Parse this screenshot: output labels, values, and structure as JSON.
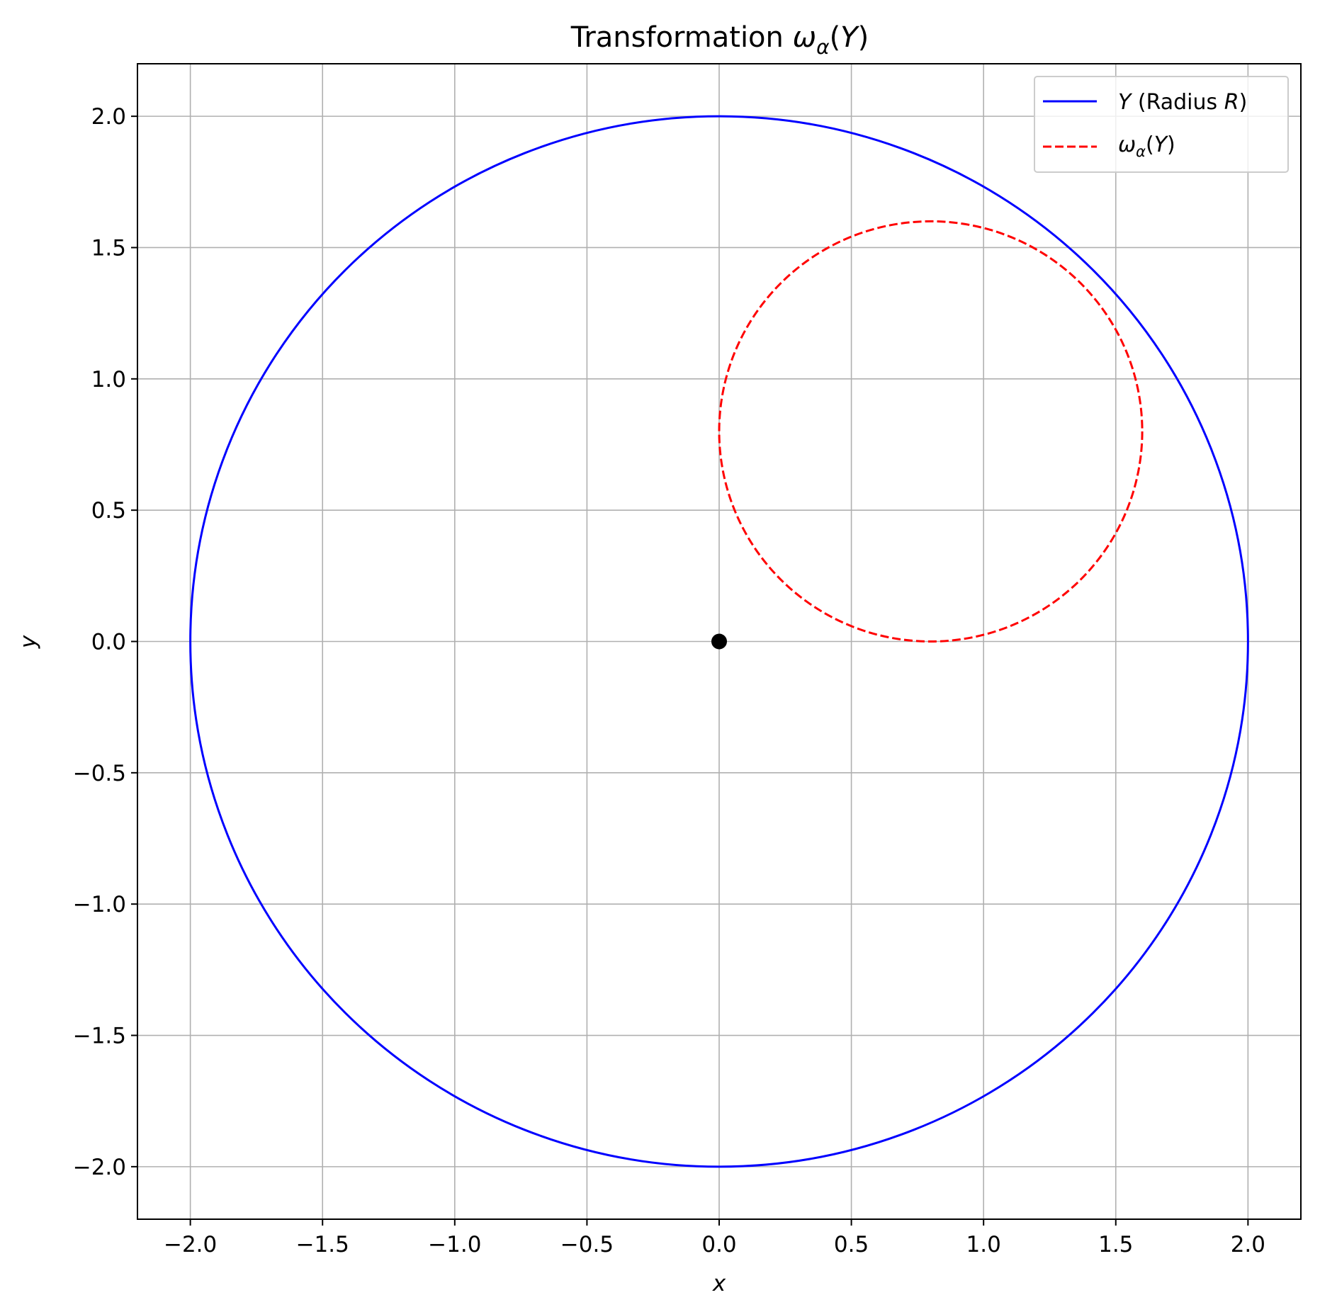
{
  "chart_data": {
    "type": "line",
    "title": {
      "prefix": "Transformation ",
      "symbol": "ω",
      "subscript": "α",
      "arg_open": "(",
      "arg": "Y",
      "arg_close": ")"
    },
    "xlabel": "x",
    "ylabel": "y",
    "xlim": [
      -2.2,
      2.2
    ],
    "ylim": [
      -2.2,
      2.2
    ],
    "xticks": [
      -2.0,
      -1.5,
      -1.0,
      -0.5,
      0.0,
      0.5,
      1.0,
      1.5,
      2.0
    ],
    "yticks": [
      -2.0,
      -1.5,
      -1.0,
      -0.5,
      0.0,
      0.5,
      1.0,
      1.5,
      2.0
    ],
    "grid": true,
    "legend_position": "upper right",
    "series": [
      {
        "name": "Y (Radius R)",
        "shape": "circle",
        "center": [
          0.0,
          0.0
        ],
        "radius": 2.0,
        "color": "#0000ff",
        "style": "solid"
      },
      {
        "name": "ωα(Y)",
        "shape": "circle",
        "center": [
          0.8,
          0.8
        ],
        "radius": 0.8,
        "color": "#ff0000",
        "style": "dashed"
      }
    ],
    "points": [
      {
        "x": 0.0,
        "y": 0.0,
        "color": "#000000",
        "marker": "dot"
      }
    ],
    "legend": {
      "entry1": {
        "var": "Y",
        "text": " (Radius ",
        "radius_var": "R",
        "close": ")"
      },
      "entry2": {
        "symbol": "ω",
        "subscript": "α",
        "open": "(",
        "arg": "Y",
        "close": ")"
      }
    }
  }
}
